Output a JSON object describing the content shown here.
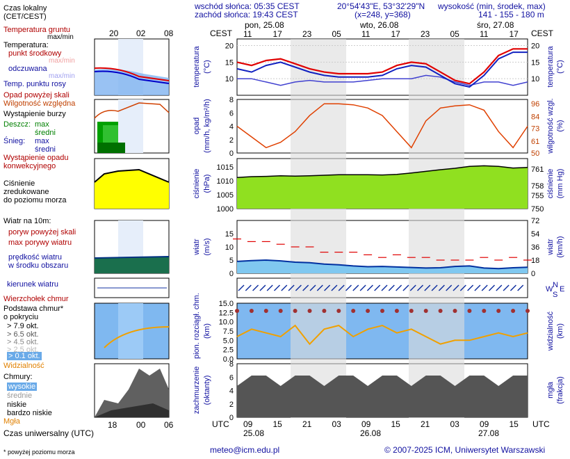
{
  "header": {
    "sunrise": "wschód słońca: 05:35 CEST",
    "sunset": "zachód słońca: 19:43 CEST",
    "coords": "20°54'43\"E, 53°32'29\"N",
    "grid": "(x=248, y=368)",
    "elev_label": "wysokość (min, środek, max)",
    "elev_values": "141 - 155 - 180 m",
    "cest": "CEST",
    "days_top": [
      "pon, 25.08",
      "wto, 26.08",
      "śro, 27.08"
    ],
    "hours_top": [
      "11",
      "17",
      "23",
      "05",
      "11",
      "17",
      "23",
      "05",
      "11",
      "17"
    ],
    "utc": "UTC",
    "hours_bottom": [
      "09",
      "15",
      "21",
      "03",
      "09",
      "15",
      "21",
      "03",
      "09",
      "15"
    ],
    "days_bottom": [
      "25.08",
      "26.08",
      "27.08"
    ]
  },
  "legend": {
    "local_time": "Czas lokalny",
    "local_time2": "(CET/CEST)",
    "local_hours": [
      "20",
      "02",
      "08"
    ],
    "soil_temp": "Temperatura gruntu",
    "soil_sub": "max/min",
    "temperature": "Temperatura:",
    "mid_point": "punkt środkowy",
    "max_min": "max/min",
    "felt": "odczuwana",
    "felt_sub": "max/min",
    "dew": "Temp. punktu rosy",
    "precip_over": "Opad powyżej skali",
    "rel_hum": "Wilgotność względna",
    "storm": "Wystąpienie burzy",
    "rain": "Deszcz:",
    "rain_max": "max",
    "rain_mid": "średni",
    "snow": "Śnieg:",
    "snow_max": "max",
    "snow_mid": "średni",
    "conv": "Wystąpienie opadu",
    "conv2": "konwekcyjnego",
    "pressure1": "Ciśnienie",
    "pressure2": "zredukowane",
    "pressure3": "do poziomu morza",
    "wind_title": "Wiatr na 10m:",
    "gust_over": "poryw powyżej skali",
    "gust_max": "max porywy wiatru",
    "wind_speed": "prędkość wiatru",
    "wind_speed2": "w środku obszaru",
    "wind_dir": "kierunek wiatru",
    "cloud_top": "Wierzchołek chmur",
    "cloud_base": "Podstawa chmur*",
    "cloud_base2": "o pokryciu",
    "okt": [
      "> 7.9 okt.",
      "> 6.5 okt.",
      "> 4.5 okt.",
      "> 2.5 okt.",
      "> 0.1 okt."
    ],
    "visibility": "Widzialność",
    "clouds": "Chmury:",
    "high": "wysokie",
    "middle": "średnie",
    "low": "niskie",
    "very_low": "bardzo niskie",
    "fog": "Mgła",
    "utc_time": "Czas uniwersalny (UTC)",
    "utc_hours": [
      "18",
      "00",
      "06"
    ],
    "footnote": "* powyżej poziomu morza"
  },
  "axes": {
    "temp_l": "temperatura",
    "temp_l2": "(°C)",
    "temp_r": "temperatura",
    "temp_r2": "(°C)",
    "prec_l": "opad",
    "prec_l2": "(mm/h, kg/m²/h)",
    "prec_r": "wilgotność wzgl.",
    "prec_r2": "(%)",
    "pres_l": "ciśnienie",
    "pres_l2": "(hPa)",
    "pres_r": "ciśnienie",
    "pres_r2": "(mm Hg)",
    "wind_l": "wiatr",
    "wind_l2": "(m/s)",
    "wind_r": "wiatr",
    "wind_r2": "(km/h)",
    "dir_l": "W",
    "dir_l2": "E",
    "dir_n": "N",
    "dir_s": "S",
    "cb_l": "pion. rozciągł. chm.",
    "cb_l2": "(km)",
    "cb_r": "widzialność",
    "cb_r2": "(km)",
    "cl_l": "zachmurzenie",
    "cl_l2": "(oktanty)",
    "cl_r": "mgła",
    "cl_r2": "(frakcja)"
  },
  "footer": {
    "email": "meteo@icm.edu.pl",
    "copyright": "© 2007-2025 ICM, Uniwersytet Warszawski"
  },
  "chart_data": [
    {
      "type": "line",
      "title": "temperatura",
      "x_hours_utc_from_25_08_06": [
        0,
        3,
        6,
        9,
        12,
        15,
        18,
        21,
        24,
        27,
        30,
        33,
        36,
        39,
        42,
        45,
        48,
        51,
        54,
        57,
        60
      ],
      "series": [
        {
          "name": "punkt środkowy",
          "values": [
            15,
            14,
            15.5,
            16,
            14.5,
            13,
            12,
            11.5,
            11.5,
            11.5,
            12,
            14,
            15,
            14.5,
            12,
            9.5,
            8.5,
            12,
            17,
            19,
            19
          ]
        },
        {
          "name": "odczuwana",
          "values": [
            13,
            12,
            14,
            15,
            13.5,
            12,
            11,
            10.5,
            10.5,
            10.5,
            11,
            13,
            14,
            13.5,
            11,
            8.5,
            7.5,
            11,
            16,
            18,
            18
          ]
        },
        {
          "name": "Temp. punktu rosy",
          "values": [
            10,
            10,
            9,
            8,
            9,
            9.5,
            9,
            9,
            9,
            9.5,
            10,
            10,
            10,
            11,
            10.5,
            9,
            8,
            9,
            9,
            8,
            9
          ]
        }
      ],
      "ylim": [
        -10,
        30
      ]
    },
    {
      "type": "line",
      "title": "opad / wilgotność",
      "series": [
        {
          "name": "Wilgotność względna",
          "values": [
            75,
            65,
            55,
            60,
            70,
            85,
            96,
            96,
            95,
            92,
            85,
            70,
            55,
            80,
            92,
            94,
            95,
            90,
            70,
            55,
            75
          ]
        }
      ],
      "ylim_precip": [
        0,
        2.0
      ],
      "ylim_humidity": [
        50,
        100
      ]
    },
    {
      "type": "area",
      "title": "ciśnienie",
      "series": [
        {
          "name": "Ciśnienie zredukowane do poziomu morza",
          "values": [
            1011.2,
            1011.5,
            1011.6,
            1011.8,
            1011.7,
            1011.8,
            1012.0,
            1012.2,
            1012.2,
            1012.2,
            1012.1,
            1012.3,
            1012.8,
            1013.4,
            1014.0,
            1014.5,
            1015.2,
            1015.4,
            1015.2,
            1014.6,
            1014.8
          ]
        }
      ],
      "ylim": [
        1000,
        1018
      ]
    },
    {
      "type": "line",
      "title": "wiatr",
      "series": [
        {
          "name": "max porywy wiatru",
          "values": [
            13,
            12,
            12,
            11,
            10,
            10,
            8,
            8,
            8,
            7,
            6,
            7,
            6,
            6,
            5,
            5,
            5,
            6,
            5,
            6,
            5
          ]
        },
        {
          "name": "prędkość wiatru",
          "values": [
            4.5,
            4.8,
            5,
            4.7,
            4.2,
            4.0,
            3.5,
            3.2,
            2.8,
            2.5,
            2.6,
            2.4,
            2.2,
            2.0,
            2.1,
            2.6,
            2.8,
            2.0,
            1.8,
            2.1,
            2.3
          ]
        }
      ],
      "ylim": [
        0,
        20
      ]
    },
    {
      "type": "line",
      "title": "widzialność",
      "series": [
        {
          "name": "Widzialność",
          "values": [
            6,
            8,
            7,
            6,
            9,
            4,
            8,
            9,
            6,
            8,
            9,
            7,
            8,
            6,
            4,
            5,
            5,
            6,
            7,
            6,
            7
          ]
        }
      ],
      "ylim": [
        0,
        15
      ]
    }
  ]
}
